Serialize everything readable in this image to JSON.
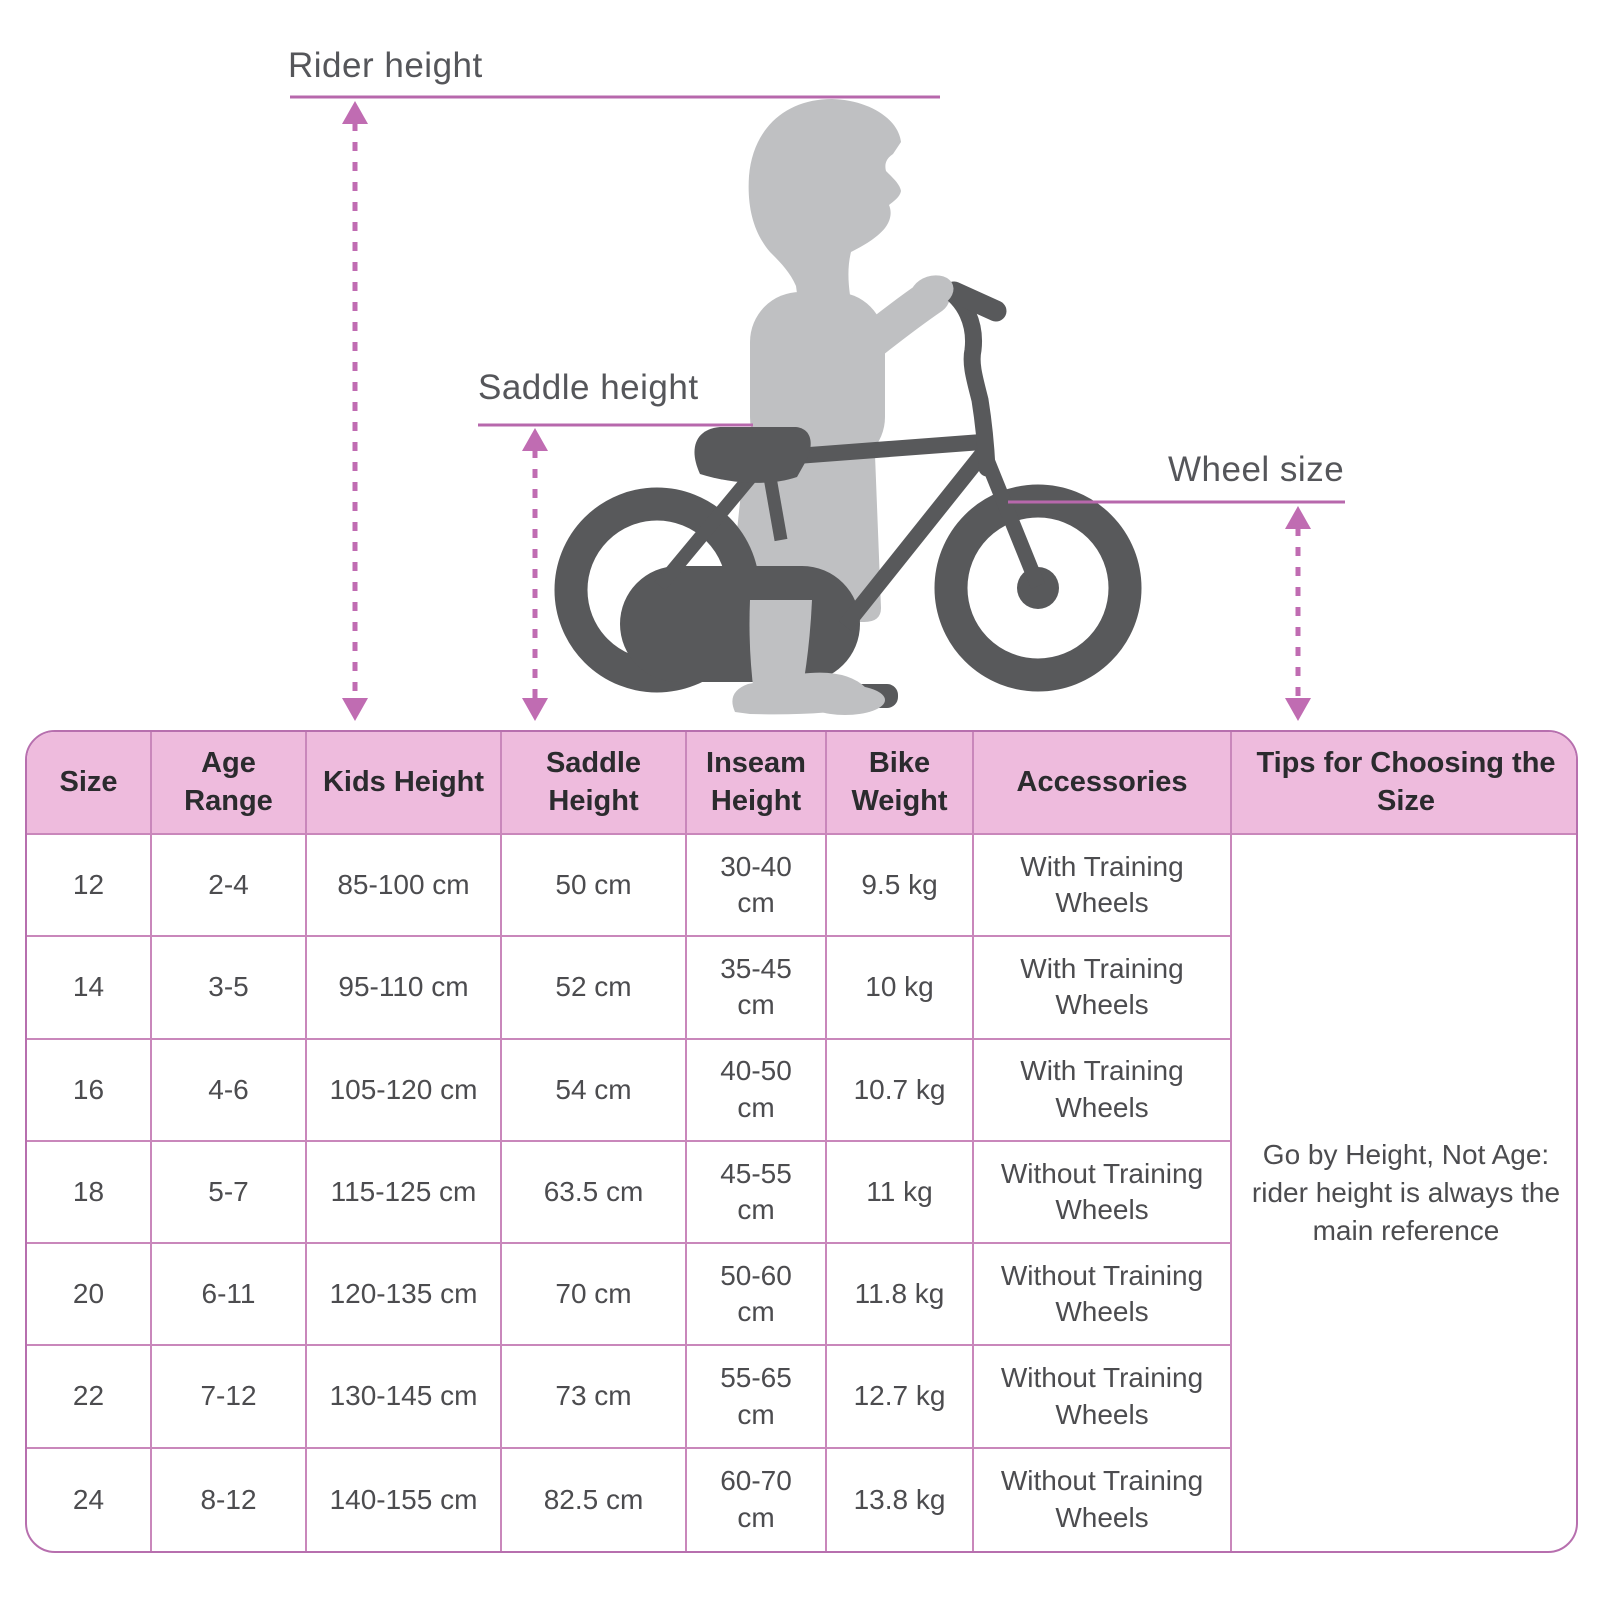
{
  "illustration": {
    "labels": {
      "rider_height": "Rider height",
      "saddle_height": "Saddle height",
      "wheel_size": "Wheel size"
    },
    "colors": {
      "figure_light": "#bfc0c2",
      "bike_dark": "#58595b",
      "measure_line": "#b768ac",
      "arrow": "#c06cb2"
    }
  },
  "table": {
    "headers": [
      "Size",
      "Age Range",
      "Kids Height",
      "Saddle Height",
      "Inseam Height",
      "Bike Weight",
      "Accessories",
      "Tips for Choosing the Size"
    ],
    "rows": [
      [
        "12",
        "2-4",
        "85-100 cm",
        "50 cm",
        "30-40 cm",
        "9.5 kg",
        "With Training Wheels"
      ],
      [
        "14",
        "3-5",
        "95-110 cm",
        "52 cm",
        "35-45 cm",
        "10 kg",
        "With Training Wheels"
      ],
      [
        "16",
        "4-6",
        "105-120 cm",
        "54 cm",
        "40-50 cm",
        "10.7 kg",
        "With Training Wheels"
      ],
      [
        "18",
        "5-7",
        "115-125 cm",
        "63.5 cm",
        "45-55 cm",
        "11 kg",
        "Without Training Wheels"
      ],
      [
        "20",
        "6-11",
        "120-135 cm",
        "70 cm",
        "50-60 cm",
        "11.8 kg",
        "Without Training Wheels"
      ],
      [
        "22",
        "7-12",
        "130-145 cm",
        "73 cm",
        "55-65 cm",
        "12.7 kg",
        "Without Training Wheels"
      ],
      [
        "24",
        "8-12",
        "140-155 cm",
        "82.5 cm",
        "60-70 cm",
        "13.8 kg",
        "Without Training Wheels"
      ]
    ],
    "tips": "Go by Height, Not Age: rider height is always the main reference",
    "colors": {
      "header_bg": "#eebbdd",
      "border": "#c987bb",
      "header_text": "#2b2b2e",
      "body_text": "#4c4c4f"
    }
  }
}
